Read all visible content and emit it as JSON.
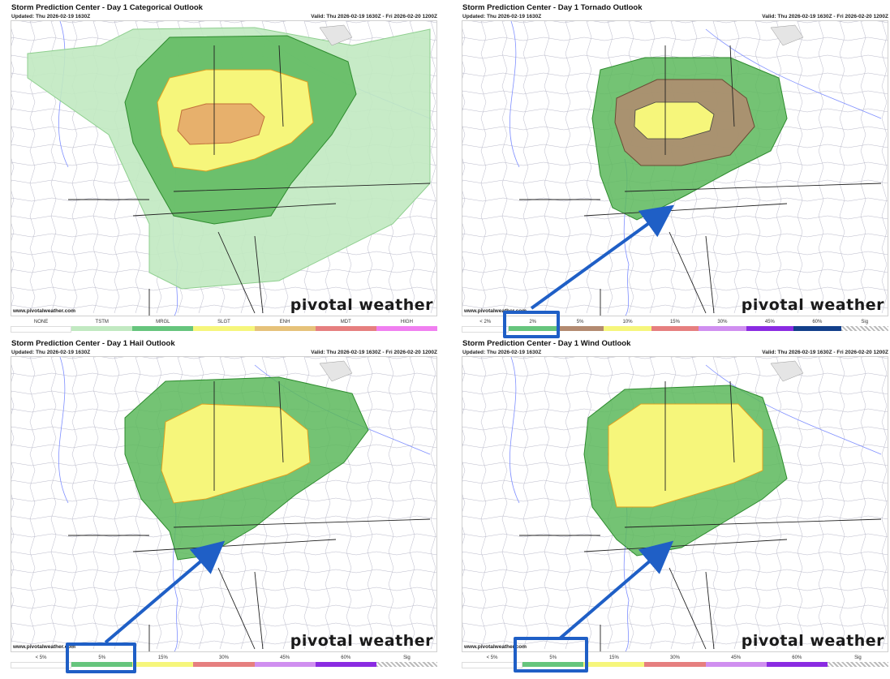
{
  "panels": [
    {
      "title": "Storm Prediction Center - Day 1 Categorical Outlook",
      "updated": "Updated: Thu 2026-02-19 1630Z",
      "valid": "Valid: Thu 2026-02-19 1630Z - Fri 2026-02-20 1200Z",
      "site": "www.pivotalweather.com",
      "brand": "pivotal weather",
      "legend": [
        {
          "label": "NONE",
          "color": "#ffffff"
        },
        {
          "label": "TSTM",
          "color": "#c1e9c1"
        },
        {
          "label": "MRGL",
          "color": "#66c57d"
        },
        {
          "label": "SLGT",
          "color": "#f6f67b"
        },
        {
          "label": "ENH",
          "color": "#e6c27a"
        },
        {
          "label": "MDT",
          "color": "#e67f7f"
        },
        {
          "label": "HIGH",
          "color": "#f07ff0"
        }
      ]
    },
    {
      "title": "Storm Prediction Center - Day 1 Tornado Outlook",
      "updated": "Updated: Thu 2026-02-19 1630Z",
      "valid": "Valid: Thu 2026-02-19 1630Z - Fri 2026-02-20 1200Z",
      "site": "www.pivotalweather.com",
      "brand": "pivotal weather",
      "legend": [
        {
          "label": "< 2%",
          "color": "#ffffff"
        },
        {
          "label": "2%",
          "color": "#66c57d"
        },
        {
          "label": "5%",
          "color": "#b38a70"
        },
        {
          "label": "10%",
          "color": "#f6f67b"
        },
        {
          "label": "15%",
          "color": "#e67f7f"
        },
        {
          "label": "30%",
          "color": "#d08ff0"
        },
        {
          "label": "45%",
          "color": "#8a2be2"
        },
        {
          "label": "60%",
          "color": "#123f8a"
        },
        {
          "label": "Sig",
          "color": "#cccccc"
        }
      ]
    },
    {
      "title": "Storm Prediction Center - Day 1 Hail Outlook",
      "updated": "Updated: Thu 2026-02-19 1630Z",
      "valid": "Valid: Thu 2026-02-19 1630Z - Fri 2026-02-20 1200Z",
      "site": "www.pivotalweather.com",
      "brand": "pivotal weather",
      "legend": [
        {
          "label": "< 5%",
          "color": "#ffffff"
        },
        {
          "label": "5%",
          "color": "#66c57d"
        },
        {
          "label": "15%",
          "color": "#f6f67b"
        },
        {
          "label": "30%",
          "color": "#e67f7f"
        },
        {
          "label": "45%",
          "color": "#d08ff0"
        },
        {
          "label": "60%",
          "color": "#8a2be2"
        },
        {
          "label": "Sig",
          "color": "#cccccc"
        }
      ]
    },
    {
      "title": "Storm Prediction Center - Day 1 Wind Outlook",
      "updated": "Updated: Thu 2026-02-19 1630Z",
      "valid": "Valid: Thu 2026-02-19 1630Z - Fri 2026-02-20 1200Z",
      "site": "www.pivotalweather.com",
      "brand": "pivotal weather",
      "legend": [
        {
          "label": "< 5%",
          "color": "#ffffff"
        },
        {
          "label": "5%",
          "color": "#66c57d"
        },
        {
          "label": "15%",
          "color": "#f6f67b"
        },
        {
          "label": "30%",
          "color": "#e67f7f"
        },
        {
          "label": "45%",
          "color": "#d08ff0"
        },
        {
          "label": "60%",
          "color": "#8a2be2"
        },
        {
          "label": "Sig",
          "color": "#cccccc"
        }
      ]
    }
  ],
  "colors": {
    "tstm": "#c1e9c1",
    "mrgl": "#5cb85c",
    "slgt": "#f6f67b",
    "enh": "#e6a86a",
    "tor5": "#b38a70",
    "annotation": "#1f5fc6"
  }
}
